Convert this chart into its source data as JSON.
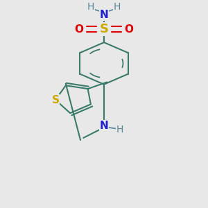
{
  "background_color": "#e8e8e8",
  "bond_color": "#3a7a6a",
  "S_color": "#ccaa00",
  "O_color": "#dd0000",
  "N_color": "#2222cc",
  "H_color": "#558899",
  "lw": 1.5,
  "figsize": [
    3.0,
    3.0
  ],
  "dpi": 100,
  "xlim": [
    0.15,
    0.85
  ],
  "ylim": [
    0.05,
    0.98
  ]
}
